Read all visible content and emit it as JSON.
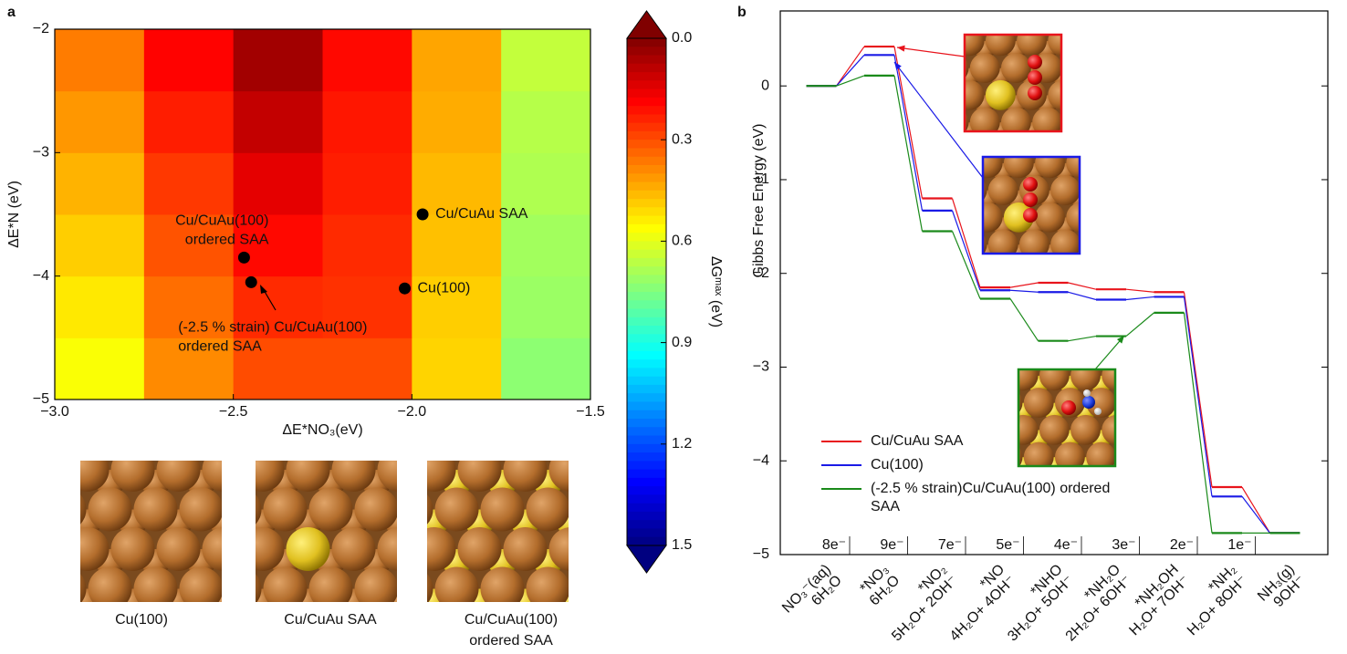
{
  "chart_data": [
    {
      "type": "heatmap",
      "panel": "a",
      "xlabel": "ΔE*NO₃(eV)",
      "ylabel": "ΔE*N (eV)",
      "xbins": [
        -3,
        -2.75,
        -2.5,
        -2.25,
        -2,
        -1.75,
        -1.5
      ],
      "ybins": [
        -5,
        -4.5,
        -4,
        -3.5,
        -3,
        -2.5,
        -2
      ],
      "values": [
        [
          0.57,
          0.39,
          0.3,
          0.3,
          0.5,
          0.73
        ],
        [
          0.53,
          0.35,
          0.25,
          0.26,
          0.49,
          0.71
        ],
        [
          0.49,
          0.31,
          0.2,
          0.25,
          0.47,
          0.7
        ],
        [
          0.45,
          0.27,
          0.15,
          0.23,
          0.46,
          0.68
        ],
        [
          0.41,
          0.23,
          0.1,
          0.22,
          0.44,
          0.67
        ],
        [
          0.37,
          0.19,
          0.05,
          0.2,
          0.43,
          0.65
        ]
      ],
      "xlim": [
        -3,
        -1.5
      ],
      "ylim": [
        -5,
        -2
      ],
      "xticks": [
        {
          "value": -3,
          "label": "−3.0"
        },
        {
          "value": -2.5,
          "label": "−2.5"
        },
        {
          "value": -2,
          "label": "−2.0"
        },
        {
          "value": -1.5,
          "label": "−1.5"
        }
      ],
      "yticks": [
        {
          "value": -2,
          "label": "−2"
        },
        {
          "value": -3,
          "label": "−3"
        },
        {
          "value": -4,
          "label": "−4"
        },
        {
          "value": -5,
          "label": "−5"
        }
      ],
      "colormap": "jet_r",
      "clim": [
        0,
        1.5
      ],
      "colorbar_label": "ΔGᵐᵃˣ (eV)",
      "cticks": [
        {
          "value": 0,
          "label": "0.0"
        },
        0.3,
        0.6,
        0.9,
        1.2,
        1.5
      ],
      "points": {
        "color": "#000000",
        "x": [
          -1.97,
          -2.02,
          -2.47,
          -2.45
        ],
        "y": [
          -3.5,
          -4.1,
          -3.85,
          -4.05
        ],
        "labels": [
          [
            "Cu/CuAu SAA"
          ],
          [
            "Cu(100)"
          ],
          [
            "Cu/CuAu(100)",
            "ordered SAA"
          ],
          [
            "(-2.5 % strain) Cu/CuAu(100)",
            "ordered SAA"
          ]
        ]
      },
      "structure_captions": [
        [
          "Cu(100)"
        ],
        [
          "Cu/CuAu SAA"
        ],
        [
          "Cu/CuAu(100)",
          "ordered SAA"
        ]
      ]
    },
    {
      "type": "step",
      "panel": "b",
      "ylabel": "Gibbs Free Energy (eV)",
      "categories": [
        [
          "NO₃⁻(aq)",
          "6H₂O"
        ],
        [
          "*NO₃",
          "6H₂O"
        ],
        [
          "*NO₂",
          "5H₂O+ 2OH⁻"
        ],
        [
          "*NO",
          "4H₂O+ 4OH⁻"
        ],
        [
          "*NHO",
          "3H₂O+ 5OH⁻"
        ],
        [
          "*NH₂O",
          "2H₂O+ 6OH⁻"
        ],
        [
          "*NH₂OH",
          "H₂O+ 7OH⁻"
        ],
        [
          "*NH₂",
          "H₂O+ 8OH⁻"
        ],
        [
          "NH₃(g)",
          "9OH⁻"
        ]
      ],
      "electron_labels": [
        "8e⁻",
        "9e⁻",
        "7e⁻",
        "5e⁻",
        "4e⁻",
        "3e⁻",
        "2e⁻",
        "1e⁻"
      ],
      "series": [
        {
          "name": "Cu/CuAu SAA",
          "color": "#e8141c",
          "values": [
            0,
            0.42,
            -1.2,
            -2.15,
            -2.1,
            -2.17,
            -2.2,
            -4.28,
            -4.77
          ]
        },
        {
          "name": "Cu(100)",
          "color": "#1a1ae6",
          "values": [
            0,
            0.33,
            -1.33,
            -2.18,
            -2.2,
            -2.28,
            -2.25,
            -4.38,
            -4.77
          ]
        },
        {
          "name": "(-2.5 % strain)Cu/CuAu(100) ordered SAA",
          "color": "#1a8a1a",
          "values": [
            0,
            0.11,
            -1.55,
            -2.27,
            -2.72,
            -2.67,
            -2.42,
            -4.77,
            -4.77
          ]
        }
      ],
      "ylim": [
        -5,
        0.8
      ],
      "yticks": [
        {
          "value": 0,
          "label": "0"
        },
        {
          "value": -1,
          "label": "−1"
        },
        {
          "value": -2,
          "label": "−2"
        },
        {
          "value": -3,
          "label": "−3"
        },
        {
          "value": -4,
          "label": "−4"
        },
        {
          "value": -5,
          "label": "−5"
        }
      ]
    }
  ]
}
